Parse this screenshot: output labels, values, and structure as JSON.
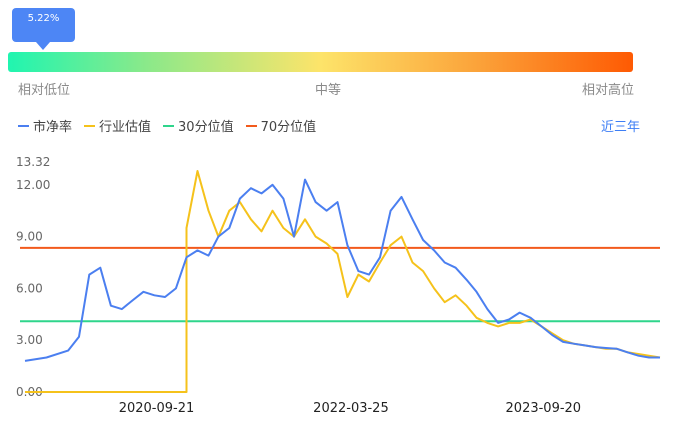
{
  "gauge": {
    "percentile_label": "5.22%",
    "percentile_value": 5.22,
    "low_label": "相对低位",
    "mid_label": "中等",
    "high_label": "相对高位"
  },
  "range_selector": {
    "label": "近三年"
  },
  "colors": {
    "market_pb": "#4b7ff0",
    "industry_pb": "#f5c21b",
    "p30": "#2fd58c",
    "p70": "#f25a1c"
  },
  "chart_data": {
    "type": "line",
    "legend": [
      "市净率",
      "行业估值",
      "30分位值",
      "70分位值"
    ],
    "y_ticks": [
      "13.32",
      "12.00",
      "9.00",
      "6.00",
      "3.00",
      "0.00"
    ],
    "ylim": [
      0,
      13.32
    ],
    "x_ticks": [
      "2020-09-21",
      "2022-03-25",
      "2023-09-20"
    ],
    "reference_lines": {
      "p30": 4.1,
      "p70": 8.35
    },
    "series": [
      {
        "name": "市净率",
        "x": [
          "2019-09",
          "2019-11",
          "2020-01",
          "2020-02",
          "2020-03",
          "2020-04",
          "2020-05",
          "2020-06",
          "2020-07",
          "2020-08",
          "2020-09",
          "2020-10",
          "2020-11",
          "2020-12",
          "2021-01",
          "2021-02",
          "2021-03",
          "2021-04",
          "2021-05",
          "2021-06",
          "2021-07",
          "2021-08",
          "2021-09",
          "2021-10",
          "2021-11",
          "2021-12",
          "2022-01",
          "2022-02",
          "2022-03",
          "2022-04",
          "2022-05",
          "2022-06",
          "2022-07",
          "2022-08",
          "2022-09",
          "2022-10",
          "2022-11",
          "2022-12",
          "2023-01",
          "2023-02",
          "2023-03",
          "2023-04",
          "2023-05",
          "2023-06",
          "2023-07",
          "2023-08",
          "2023-09",
          "2023-10",
          "2023-11",
          "2023-12",
          "2024-01",
          "2024-02",
          "2024-03",
          "2024-04",
          "2024-05",
          "2024-06",
          "2024-07",
          "2024-08"
        ],
        "values": [
          1.8,
          2.0,
          2.4,
          3.2,
          6.8,
          7.2,
          5.0,
          4.8,
          5.3,
          5.8,
          5.6,
          5.5,
          6.0,
          7.8,
          8.2,
          7.9,
          9.0,
          9.5,
          11.2,
          11.8,
          11.5,
          12.0,
          11.2,
          9.0,
          12.3,
          11.0,
          10.5,
          11.0,
          8.5,
          7.0,
          6.8,
          7.8,
          10.5,
          11.3,
          10.0,
          8.8,
          8.2,
          7.5,
          7.2,
          6.5,
          5.8,
          4.8,
          4.0,
          4.2,
          4.6,
          4.3,
          3.8,
          3.3,
          2.9,
          2.8,
          2.7,
          2.6,
          2.55,
          2.5,
          2.3,
          2.1,
          2.0,
          2.0
        ]
      },
      {
        "name": "行业估值",
        "x": [
          "2019-09",
          "2020-12",
          "2020-12",
          "2021-01",
          "2021-02",
          "2021-03",
          "2021-04",
          "2021-05",
          "2021-06",
          "2021-07",
          "2021-08",
          "2021-09",
          "2021-10",
          "2021-11",
          "2021-12",
          "2022-01",
          "2022-02",
          "2022-03",
          "2022-04",
          "2022-05",
          "2022-06",
          "2022-07",
          "2022-08",
          "2022-09",
          "2022-10",
          "2022-11",
          "2022-12",
          "2023-01",
          "2023-02",
          "2023-03",
          "2023-04",
          "2023-05",
          "2023-06",
          "2023-07",
          "2023-08",
          "2023-09",
          "2023-10",
          "2023-11",
          "2023-12",
          "2024-01",
          "2024-02",
          "2024-03",
          "2024-04",
          "2024-05",
          "2024-06",
          "2024-07",
          "2024-08"
        ],
        "values": [
          0.0,
          0.0,
          9.5,
          12.8,
          10.5,
          9.0,
          10.5,
          11.0,
          10.0,
          9.3,
          10.5,
          9.5,
          9.0,
          10.0,
          9.0,
          8.6,
          8.0,
          5.5,
          6.8,
          6.4,
          7.5,
          8.5,
          9.0,
          7.5,
          7.0,
          6.0,
          5.2,
          5.6,
          5.0,
          4.3,
          4.0,
          3.8,
          4.0,
          4.0,
          4.2,
          3.8,
          3.4,
          3.0,
          2.8,
          2.7,
          2.6,
          2.5,
          2.5,
          2.3,
          2.2,
          2.1,
          2.0
        ]
      }
    ]
  }
}
